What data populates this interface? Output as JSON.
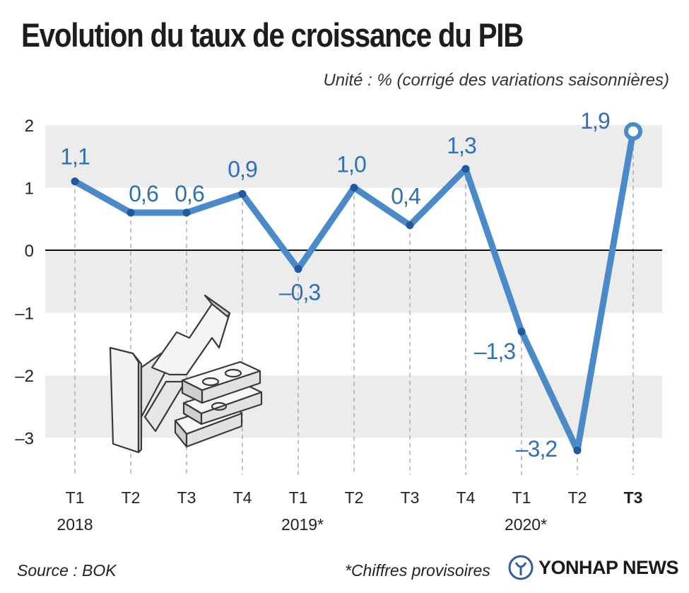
{
  "title": "Evolution du taux de croissance du PIB",
  "subtitle": "Unité : % (corrigé des variations saisonnières)",
  "source": "Source : BOK",
  "footnote": "*Chiffres provisoires",
  "brand": "YONHAP NEWS",
  "colors": {
    "line": "#4a8ac9",
    "dot": "#1f5aa0",
    "label": "#2f6fb3",
    "band": "#ececec"
  },
  "chart_data": {
    "type": "line",
    "title": "Evolution du taux de croissance du PIB",
    "ylabel": "Unité : % (corrigé des variations saisonnières)",
    "ylim": [
      -3.7,
      2.1
    ],
    "yticks": [
      2,
      1,
      0,
      -1,
      -2,
      -3
    ],
    "ytick_labels": [
      "2",
      "1",
      "0",
      "–1",
      "–2",
      "–3"
    ],
    "categories": [
      "T1",
      "T2",
      "T3",
      "T4",
      "T1",
      "T2",
      "T3",
      "T4",
      "T1",
      "T2",
      "T3"
    ],
    "years": [
      {
        "label": "2018",
        "index": 0
      },
      {
        "label": "2019*",
        "index": 4
      },
      {
        "label": "2020*",
        "index": 8
      }
    ],
    "series": [
      {
        "name": "Taux de croissance du PIB",
        "values": [
          1.1,
          0.6,
          0.6,
          0.9,
          -0.3,
          1.0,
          0.4,
          1.3,
          -1.3,
          -3.2,
          1.9
        ],
        "labels": [
          "1,1",
          "0,6",
          "0,6",
          "0,9",
          "–0,3",
          "1,0",
          "0,4",
          "1,3",
          "–1,3",
          "–3,2",
          "1,9"
        ]
      }
    ]
  }
}
